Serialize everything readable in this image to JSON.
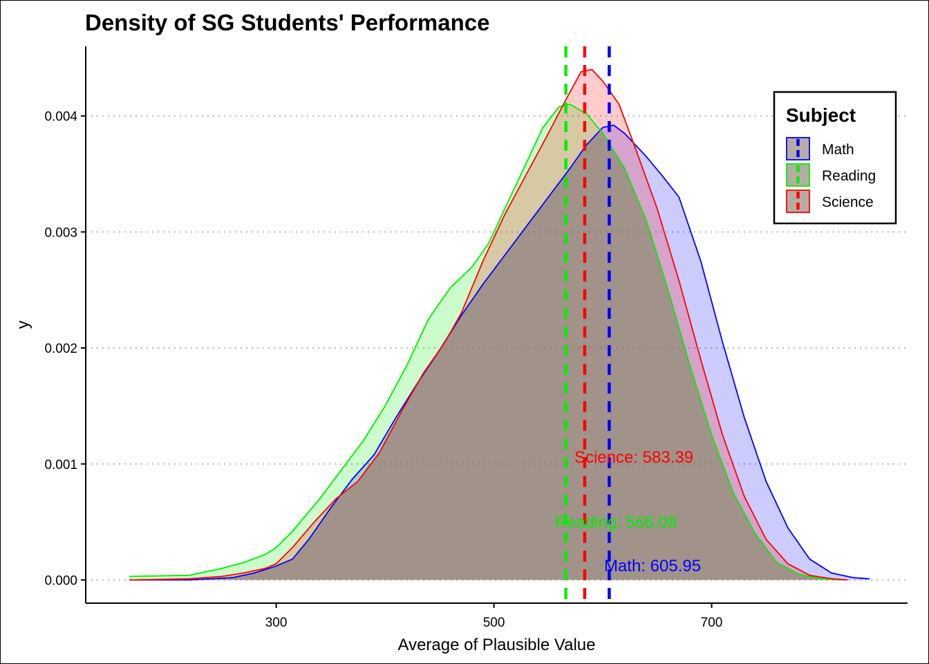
{
  "chart_data": {
    "type": "area",
    "title": "Density of SG Students' Performance",
    "xlabel": "Average of Plausible Value",
    "ylabel": "y",
    "xlim": [
      125,
      880
    ],
    "ylim": [
      -0.0002,
      0.0046
    ],
    "x_ticks": [
      300,
      500,
      700
    ],
    "y_ticks": [
      0.0,
      0.001,
      0.002,
      0.003,
      0.004
    ],
    "y_tick_labels": [
      "0.000",
      "0.001",
      "0.002",
      "0.003",
      "0.004"
    ],
    "grid": "horizontal dotted",
    "legend": {
      "title": "Subject",
      "position": "top-right",
      "entries": [
        "Math",
        "Reading",
        "Science"
      ]
    },
    "series": [
      {
        "name": "Math",
        "color": "#0000FF",
        "mean": 605.95,
        "annotation": "Math: 605.95",
        "points": [
          [
            165,
            0
          ],
          [
            220,
            0
          ],
          [
            260,
            2e-05
          ],
          [
            280,
            6e-05
          ],
          [
            300,
            0.00012
          ],
          [
            315,
            0.00018
          ],
          [
            330,
            0.00035
          ],
          [
            350,
            0.00062
          ],
          [
            370,
            0.00087
          ],
          [
            390,
            0.00108
          ],
          [
            410,
            0.0014
          ],
          [
            430,
            0.0017
          ],
          [
            450,
            0.00198
          ],
          [
            470,
            0.00228
          ],
          [
            490,
            0.00255
          ],
          [
            510,
            0.0028
          ],
          [
            530,
            0.00305
          ],
          [
            550,
            0.0033
          ],
          [
            570,
            0.00355
          ],
          [
            585,
            0.00375
          ],
          [
            600,
            0.0039
          ],
          [
            610,
            0.00392
          ],
          [
            620,
            0.00385
          ],
          [
            640,
            0.00365
          ],
          [
            655,
            0.00348
          ],
          [
            670,
            0.0033
          ],
          [
            690,
            0.00275
          ],
          [
            710,
            0.00205
          ],
          [
            730,
            0.0014
          ],
          [
            750,
            0.00085
          ],
          [
            770,
            0.00045
          ],
          [
            790,
            0.00018
          ],
          [
            810,
            6e-05
          ],
          [
            830,
            2e-05
          ],
          [
            845,
            1e-05
          ]
        ]
      },
      {
        "name": "Reading",
        "color": "#00EE00",
        "mean": 566.08,
        "annotation": "Reading: 566.08",
        "points": [
          [
            165,
            3e-05
          ],
          [
            220,
            4e-05
          ],
          [
            250,
            0.0001
          ],
          [
            270,
            0.00015
          ],
          [
            290,
            0.00022
          ],
          [
            300,
            0.00028
          ],
          [
            315,
            0.00042
          ],
          [
            340,
            0.0007
          ],
          [
            360,
            0.00095
          ],
          [
            380,
            0.0012
          ],
          [
            400,
            0.0015
          ],
          [
            420,
            0.00185
          ],
          [
            440,
            0.00225
          ],
          [
            460,
            0.00252
          ],
          [
            480,
            0.0027
          ],
          [
            495,
            0.0029
          ],
          [
            510,
            0.0032
          ],
          [
            530,
            0.0036
          ],
          [
            545,
            0.0039
          ],
          [
            560,
            0.00408
          ],
          [
            570,
            0.0041
          ],
          [
            585,
            0.00402
          ],
          [
            600,
            0.00385
          ],
          [
            620,
            0.00355
          ],
          [
            640,
            0.0031
          ],
          [
            660,
            0.0025
          ],
          [
            680,
            0.00185
          ],
          [
            700,
            0.00125
          ],
          [
            720,
            0.00075
          ],
          [
            740,
            0.0004
          ],
          [
            760,
            0.00015
          ],
          [
            780,
            5e-05
          ],
          [
            800,
            1e-05
          ],
          [
            820,
            0
          ]
        ]
      },
      {
        "name": "Science",
        "color": "#FF0000",
        "mean": 583.39,
        "annotation": "Science: 583.39",
        "points": [
          [
            165,
            0
          ],
          [
            220,
            1e-05
          ],
          [
            250,
            3e-05
          ],
          [
            270,
            6e-05
          ],
          [
            290,
            0.0001
          ],
          [
            300,
            0.00014
          ],
          [
            315,
            0.00028
          ],
          [
            335,
            0.0005
          ],
          [
            355,
            0.0007
          ],
          [
            375,
            0.00085
          ],
          [
            395,
            0.0011
          ],
          [
            415,
            0.00145
          ],
          [
            435,
            0.00178
          ],
          [
            455,
            0.00205
          ],
          [
            470,
            0.0023
          ],
          [
            490,
            0.00275
          ],
          [
            510,
            0.00315
          ],
          [
            530,
            0.0035
          ],
          [
            550,
            0.00385
          ],
          [
            565,
            0.00412
          ],
          [
            580,
            0.00438
          ],
          [
            590,
            0.0044
          ],
          [
            600,
            0.0043
          ],
          [
            615,
            0.0041
          ],
          [
            630,
            0.00372
          ],
          [
            650,
            0.0032
          ],
          [
            670,
            0.00258
          ],
          [
            690,
            0.0019
          ],
          [
            710,
            0.00125
          ],
          [
            730,
            0.00072
          ],
          [
            750,
            0.00035
          ],
          [
            770,
            0.00014
          ],
          [
            790,
            4e-05
          ],
          [
            810,
            1e-05
          ],
          [
            825,
            0
          ]
        ]
      }
    ]
  }
}
